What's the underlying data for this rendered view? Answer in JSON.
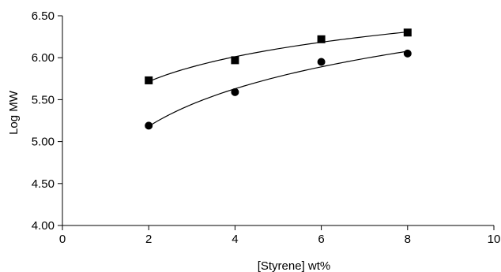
{
  "chart_data": {
    "type": "scatter",
    "title": "",
    "xlabel": "[Styrene] wt%",
    "ylabel": "Log MW",
    "xlim": [
      0,
      10
    ],
    "ylim": [
      4.0,
      6.5
    ],
    "x_ticks": [
      0,
      2,
      4,
      6,
      8,
      10
    ],
    "y_ticks": [
      4.0,
      4.5,
      5.0,
      5.5,
      6.0,
      6.5
    ],
    "x_tick_labels": [
      "0",
      "2",
      "4",
      "6",
      "8",
      "10"
    ],
    "y_tick_labels": [
      "4.00",
      "4.50",
      "5.00",
      "5.50",
      "6.00",
      "6.50"
    ],
    "grid": false,
    "legend": "none",
    "series": [
      {
        "marker": "square",
        "color": "#000000",
        "x": [
          2,
          4,
          6,
          8
        ],
        "y": [
          5.73,
          5.97,
          6.22,
          6.3
        ],
        "trendline": "logarithmic"
      },
      {
        "marker": "circle",
        "color": "#000000",
        "x": [
          2,
          4,
          6,
          8
        ],
        "y": [
          5.19,
          5.59,
          5.95,
          6.05
        ],
        "trendline": "logarithmic"
      }
    ]
  }
}
